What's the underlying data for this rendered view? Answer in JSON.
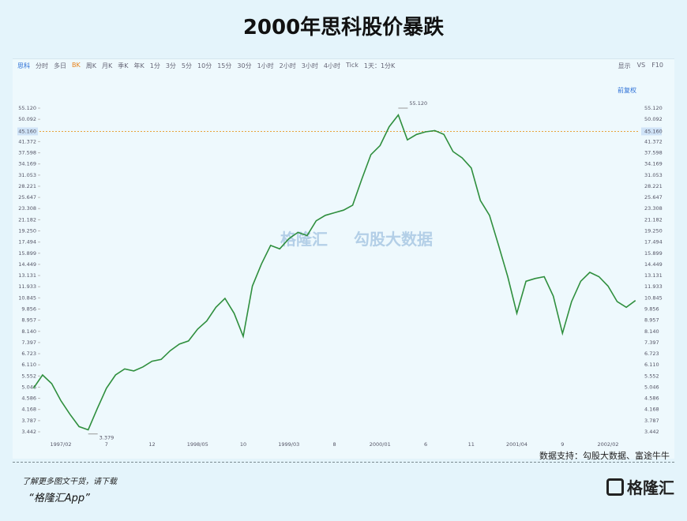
{
  "title": "2000年思科股价暴跌",
  "toolbar": {
    "items": [
      "思科",
      "分时",
      "多日",
      "BK",
      "周K",
      "月K",
      "季K",
      "年K",
      "1分",
      "3分",
      "5分",
      "10分",
      "15分",
      "30分",
      "1小时",
      "2小时",
      "3小时",
      "4小时",
      "Tick",
      "1天：1分K"
    ],
    "right": [
      "显示",
      "VS",
      "F10"
    ],
    "adjust": "前复权"
  },
  "watermark": [
    "格隆汇",
    "勾股大数据"
  ],
  "source": "数据支持：勾股大数据、富途牛牛",
  "promo": [
    "了解更多图文干货，请下载",
    "“格隆汇App”"
  ],
  "logo": "格隆汇",
  "chart_data": {
    "type": "line",
    "log": true,
    "color": "#2f8f3e",
    "categories": [
      null,
      null,
      null,
      "1997/02",
      null,
      null,
      null,
      null,
      "7",
      null,
      null,
      null,
      null,
      "12",
      null,
      null,
      null,
      null,
      "1998/05",
      null,
      null,
      null,
      null,
      "10",
      null,
      null,
      null,
      null,
      "1999/03",
      null,
      null,
      null,
      null,
      "8",
      null,
      null,
      null,
      null,
      "2000/01",
      null,
      null,
      null,
      null,
      "6",
      null,
      null,
      null,
      null,
      "11",
      null,
      null,
      null,
      null,
      "2001/04",
      null,
      null,
      null,
      null,
      "9",
      null,
      null,
      null,
      null,
      "2002/02",
      null,
      null,
      null
    ],
    "values": [
      5.0,
      5.6,
      5.2,
      4.5,
      4.0,
      3.6,
      3.5,
      4.2,
      5.0,
      5.6,
      5.9,
      5.8,
      6.0,
      6.3,
      6.4,
      6.9,
      7.3,
      7.5,
      8.3,
      8.9,
      10.0,
      10.8,
      9.5,
      7.8,
      12.0,
      14.5,
      17,
      16.5,
      18,
      19,
      18.5,
      21,
      22,
      22.5,
      23,
      24,
      30,
      37,
      40,
      47,
      52,
      42,
      44,
      45,
      45.5,
      44,
      38,
      36,
      33,
      25,
      22,
      17,
      13,
      9.5,
      12.5,
      12.8,
      13,
      11,
      8,
      10.5,
      12.5,
      13.5,
      13,
      12,
      10.5,
      10,
      10.6
    ],
    "ylim": [
      3.442,
      55.12
    ],
    "yticks": [
      3.442,
      3.787,
      4.168,
      4.586,
      5.046,
      5.552,
      {
        "value": 6.11,
        "label": "6.110"
      },
      6.723,
      7.397,
      {
        "value": 8.14,
        "label": "8.140"
      },
      8.957,
      9.856,
      10.845,
      11.933,
      13.131,
      14.449,
      15.899,
      17.494,
      {
        "value": 19.25,
        "label": "19.250"
      },
      21.182,
      23.308,
      25.647,
      28.221,
      31.053,
      34.169,
      37.598,
      41.372,
      50.092,
      {
        "value": 55.12,
        "label": "55.120"
      }
    ],
    "high": {
      "value": 55.12,
      "label": "55.120"
    },
    "low": {
      "value": 3.379,
      "label": "3.379"
    },
    "current": {
      "value": 45.16,
      "label": "45.160"
    }
  }
}
